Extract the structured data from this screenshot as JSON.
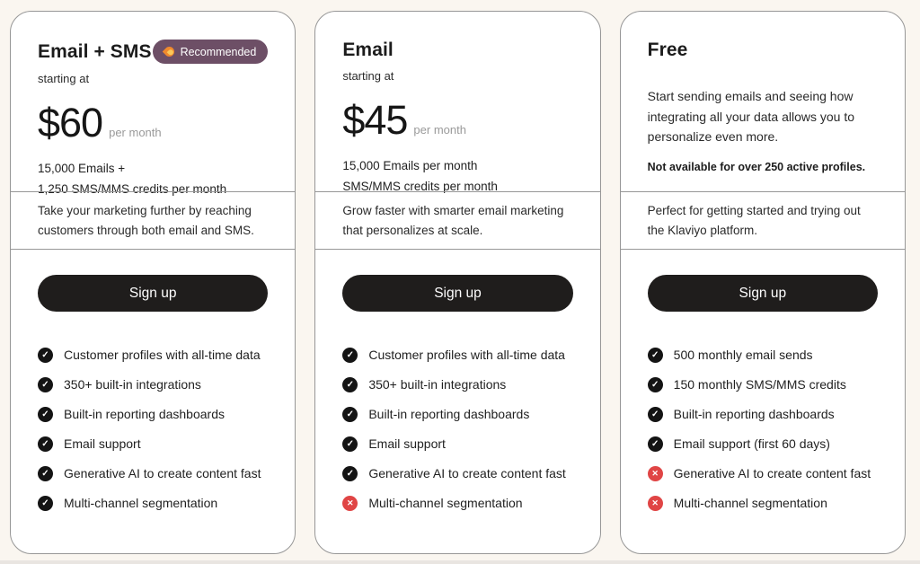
{
  "colors": {
    "page_bg": "#faf6f0",
    "card_bg": "#ffffff",
    "card_border": "#979797",
    "badge_bg": "#6d4f66",
    "badge_text": "#ffffff",
    "button_bg": "#1f1d1c",
    "button_text": "#ffffff",
    "check_icon": "#141414",
    "cross_icon": "#e04545",
    "muted_text": "#9a9a9a"
  },
  "cards": [
    {
      "title": "Email + SMS",
      "badge": {
        "icon": "flame-icon",
        "label": "Recommended"
      },
      "starting_at": "starting at",
      "price": "$60",
      "price_suffix": "per month",
      "allowances": [
        "15,000 Emails +",
        "1,250 SMS/MMS credits per month"
      ],
      "description": "Take your marketing further by reaching customers through both email and SMS.",
      "cta": "Sign up",
      "features": [
        {
          "label": "Customer profiles with all-time data",
          "included": true
        },
        {
          "label": "350+ built-in integrations",
          "included": true
        },
        {
          "label": "Built-in reporting dashboards",
          "included": true
        },
        {
          "label": "Email support",
          "included": true
        },
        {
          "label": "Generative AI to create content fast",
          "included": true
        },
        {
          "label": "Multi-channel segmentation",
          "included": true
        }
      ]
    },
    {
      "title": "Email",
      "starting_at": "starting at",
      "price": "$45",
      "price_suffix": "per month",
      "allowances": [
        "15,000 Emails per month",
        "SMS/MMS credits per month"
      ],
      "description": "Grow faster with smarter email marketing that personalizes at scale.",
      "cta": "Sign up",
      "features": [
        {
          "label": "Customer profiles with all-time data",
          "included": true
        },
        {
          "label": "350+ built-in integrations",
          "included": true
        },
        {
          "label": "Built-in reporting dashboards",
          "included": true
        },
        {
          "label": "Email support",
          "included": true
        },
        {
          "label": "Generative AI to create content fast",
          "included": true
        },
        {
          "label": "Multi-channel segmentation",
          "included": false
        }
      ]
    },
    {
      "title": "Free",
      "intro": "Start sending emails and seeing how integrating all your data allows you to personalize even more.",
      "note": "Not available for over 250 active profiles.",
      "description": "Perfect for getting started and trying out the Klaviyo platform.",
      "cta": "Sign up",
      "features": [
        {
          "label": "500 monthly email sends",
          "included": true
        },
        {
          "label": "150 monthly SMS/MMS credits",
          "included": true
        },
        {
          "label": "Built-in reporting dashboards",
          "included": true
        },
        {
          "label": "Email support (first 60 days)",
          "included": true
        },
        {
          "label": "Generative AI to create content fast",
          "included": false
        },
        {
          "label": "Multi-channel segmentation",
          "included": false
        }
      ]
    }
  ]
}
